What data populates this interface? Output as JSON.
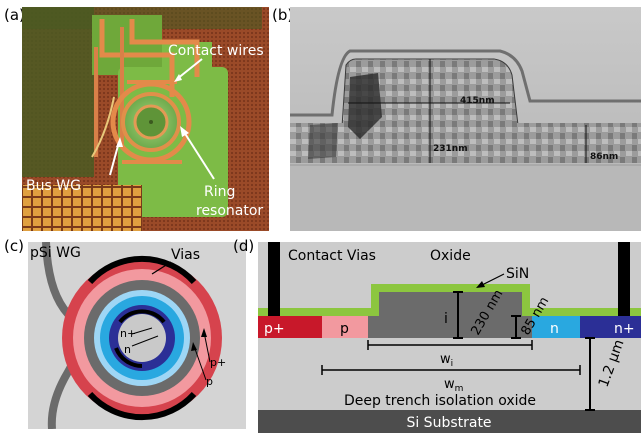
{
  "panels": {
    "a": {
      "label": "(a)",
      "annotations": {
        "contact_wires": "Contact wires",
        "bus_wg": "Bus WG",
        "ring_line1": "Ring",
        "ring_line2": "resonator"
      }
    },
    "b": {
      "label": "(b)",
      "measurements": {
        "top": "415nm",
        "left": "231nm",
        "right": "86nm"
      }
    },
    "c": {
      "label": "(c)",
      "annotations": {
        "psi_wg": "pSi WG",
        "vias": "Vias",
        "nplus": "n+",
        "n": "n",
        "pplus": "p+",
        "p": "p"
      }
    },
    "d": {
      "label": "(d)",
      "annotations": {
        "contact_vias": "Contact Vias",
        "oxide": "Oxide",
        "sin": "SiN",
        "i": "i",
        "h230": "230 nm",
        "h85": "85 nm",
        "h12": "1.2 μm",
        "pplus": "p+",
        "p": "p",
        "n": "n",
        "nplus": "n+",
        "wi": "w",
        "wi_sub": "i",
        "wm": "w",
        "wm_sub": "m",
        "dti": "Deep trench isolation oxide",
        "substrate": "Si Substrate"
      }
    }
  },
  "colors": {
    "p_plus": "#c8182a",
    "p": "#f2999f",
    "n": "#29a8e0",
    "n_plus": "#2b2f96",
    "sin": "#8cc63f",
    "silicon": "#6b6b6b",
    "oxide": "#cccccc",
    "substrate": "#4d4d4d"
  }
}
